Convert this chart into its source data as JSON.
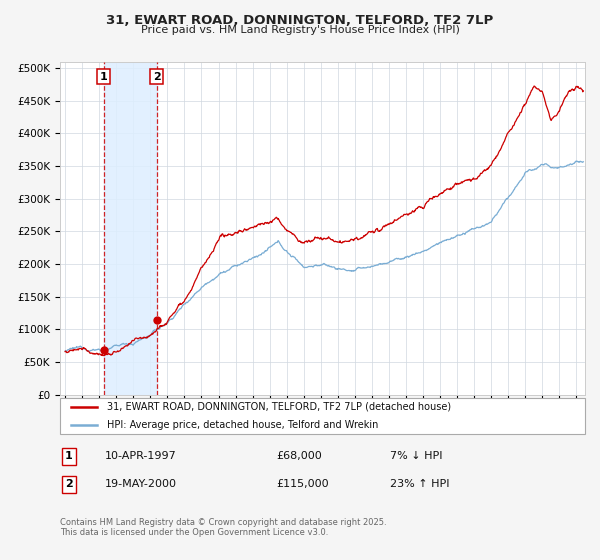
{
  "title": "31, EWART ROAD, DONNINGTON, TELFORD, TF2 7LP",
  "subtitle": "Price paid vs. HM Land Registry's House Price Index (HPI)",
  "ylabel_ticks": [
    "£0",
    "£50K",
    "£100K",
    "£150K",
    "£200K",
    "£250K",
    "£300K",
    "£350K",
    "£400K",
    "£450K",
    "£500K"
  ],
  "ytick_vals": [
    0,
    50000,
    100000,
    150000,
    200000,
    250000,
    300000,
    350000,
    400000,
    450000,
    500000
  ],
  "ylim": [
    0,
    510000
  ],
  "xlim_start": 1994.7,
  "xlim_end": 2025.5,
  "sale1_date": 1997.27,
  "sale1_price": 68000,
  "sale2_date": 2000.38,
  "sale2_price": 115000,
  "legend_line1": "31, EWART ROAD, DONNINGTON, TELFORD, TF2 7LP (detached house)",
  "legend_line2": "HPI: Average price, detached house, Telford and Wrekin",
  "footer": "Contains HM Land Registry data © Crown copyright and database right 2025.\nThis data is licensed under the Open Government Licence v3.0.",
  "red_line_color": "#cc0000",
  "blue_line_color": "#7aadd4",
  "highlight_bg": "#ddeeff",
  "plot_bg": "#ffffff",
  "fig_bg": "#f5f5f5"
}
